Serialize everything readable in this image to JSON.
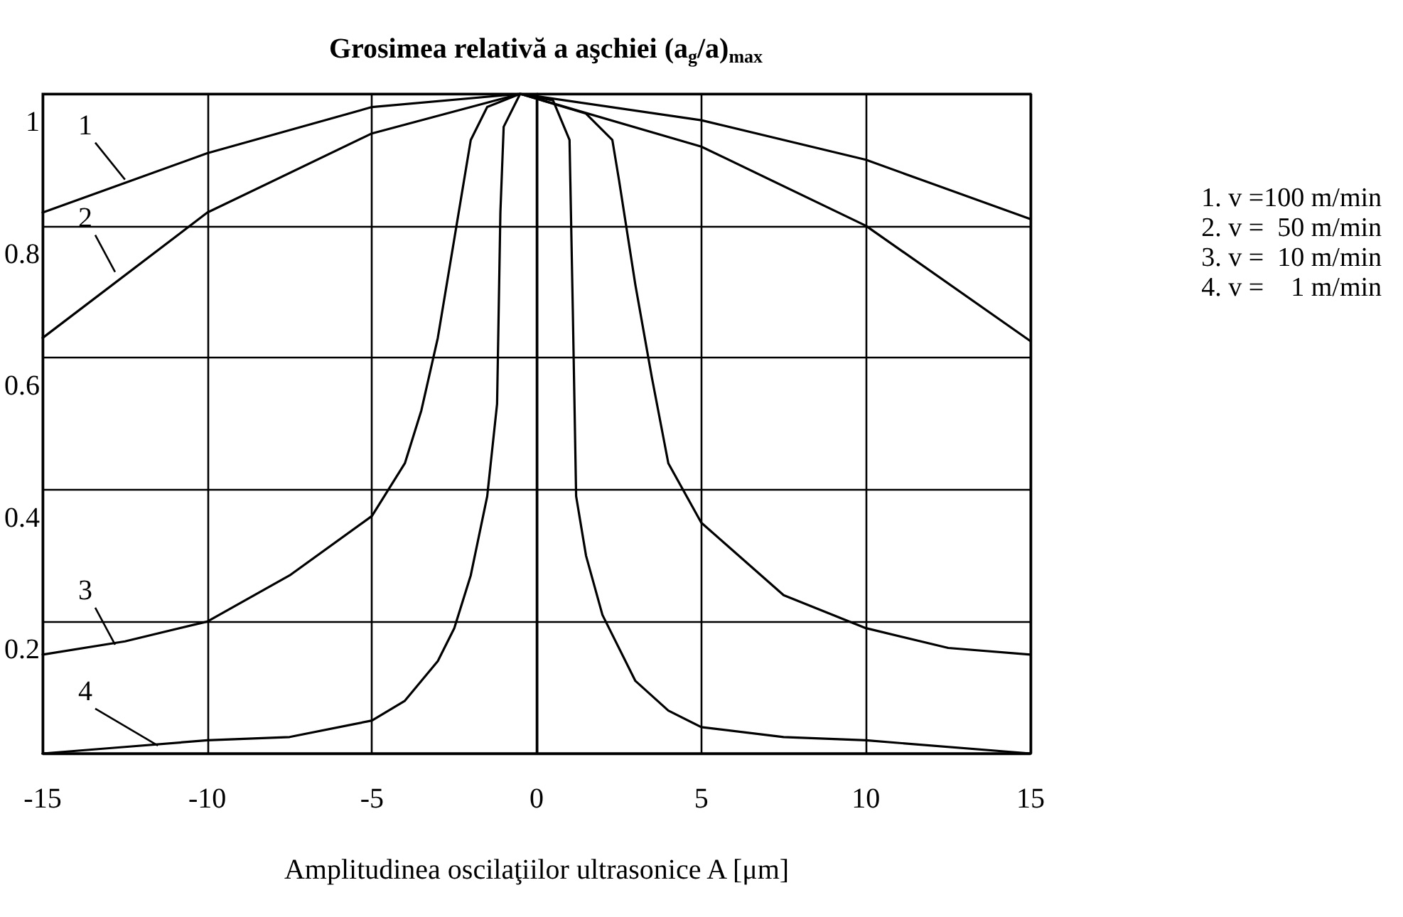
{
  "chart_data": {
    "type": "line",
    "title": "Grosimea relativă a aşchiei (a$_{g}$/a)$_{max}$",
    "xlabel": "Amplitudinea oscilaţiilor ultrasonice A [μm]",
    "xlim": [
      -15,
      15
    ],
    "xticks": [
      -15,
      -10,
      -5,
      0,
      5,
      10,
      15
    ],
    "ylim": [
      0,
      1
    ],
    "yticks": [
      {
        "value": 0,
        "label": null
      },
      0.2,
      0.4,
      0.6,
      0.8,
      1
    ],
    "grid": true,
    "legend": "right",
    "marker": "none",
    "line_style": "solid",
    "series": [
      {
        "name": "1. v =100 m/min",
        "color": "#000000",
        "x": [
          -15,
          -10,
          -5,
          -0.5,
          5,
          10,
          15
        ],
        "values": [
          0.82,
          0.91,
          0.98,
          1,
          0.96,
          0.9,
          0.81
        ]
      },
      {
        "name": "2. v =  50 m/min",
        "color": "#000000",
        "x": [
          -15,
          -10,
          -5,
          -0.5,
          5,
          10,
          15
        ],
        "values": [
          0.63,
          0.82,
          0.94,
          1,
          0.92,
          0.8,
          0.625
        ]
      },
      {
        "name": "3. v =  10 m/min",
        "color": "#000000",
        "x": [
          -15,
          -12.5,
          -10,
          -7.5,
          -5,
          -4,
          -3.5,
          -3,
          -2.5,
          -2,
          -1.5,
          -0.5,
          1.5,
          2.3,
          2.5,
          3,
          3.5,
          4,
          5,
          7.5,
          10,
          12.5,
          15
        ],
        "values": [
          0.15,
          0.17,
          0.2,
          0.27,
          0.36,
          0.44,
          0.52,
          0.63,
          0.78,
          0.93,
          0.98,
          1,
          0.97,
          0.93,
          0.87,
          0.71,
          0.57,
          0.44,
          0.35,
          0.24,
          0.19,
          0.16,
          0.15
        ]
      },
      {
        "name": "4. v =    1 m/min",
        "color": "#000000",
        "x": [
          -15,
          -12.5,
          -10,
          -7.5,
          -5,
          -4,
          -3,
          -2.5,
          -2,
          -1.5,
          -1.2,
          -1.1,
          -1,
          -0.5,
          0.5,
          1,
          1.1,
          1.2,
          1.5,
          2,
          3,
          4,
          5,
          7.5,
          10,
          15
        ],
        "values": [
          0,
          0.01,
          0.02,
          0.025,
          0.05,
          0.08,
          0.14,
          0.19,
          0.27,
          0.39,
          0.53,
          0.82,
          0.95,
          1,
          0.99,
          0.93,
          0.67,
          0.39,
          0.3,
          0.21,
          0.11,
          0.065,
          0.04,
          0.025,
          0.02,
          0
        ]
      }
    ],
    "annotations": [
      {
        "text": "1",
        "x": -12.5,
        "y": 0.87
      },
      {
        "text": "2",
        "x": -12.8,
        "y": 0.73
      },
      {
        "text": "3",
        "x": -12.8,
        "y": 0.165
      },
      {
        "text": "4",
        "x": -11.5,
        "y": 0.012
      }
    ]
  }
}
